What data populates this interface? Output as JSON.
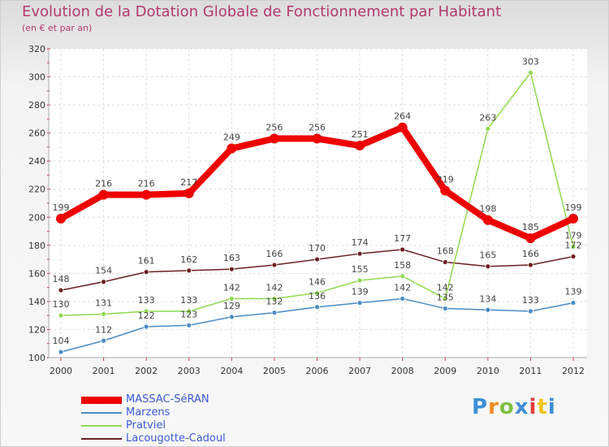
{
  "title": "Evolution de la Dotation Globale de Fonctionnement par Habitant",
  "subtitle": "(en € et par an)",
  "logo_text": "Proxiti",
  "chart_data": {
    "type": "line",
    "x": [
      "2000",
      "2001",
      "2002",
      "2003",
      "2004",
      "2005",
      "2006",
      "2007",
      "2008",
      "2009",
      "2010",
      "2011",
      "2012"
    ],
    "ylim": [
      100,
      320
    ],
    "yticks": [
      100,
      120,
      140,
      160,
      180,
      200,
      220,
      240,
      260,
      280,
      300,
      320
    ],
    "grid": true,
    "legend_position": "bottom-left",
    "series": [
      {
        "name": "MASSAC-SéRAN",
        "color": "#ee0000",
        "values": [
          199,
          216,
          216,
          217,
          249,
          256,
          256,
          251,
          264,
          219,
          198,
          185,
          199
        ]
      },
      {
        "name": "Marzens",
        "color": "#4a8bc5",
        "values": [
          104,
          112,
          122,
          123,
          129,
          132,
          136,
          139,
          142,
          135,
          134,
          133,
          139
        ]
      },
      {
        "name": "Pratviel",
        "color": "#8fd94f",
        "values": [
          130,
          131,
          133,
          133,
          142,
          142,
          146,
          155,
          158,
          142,
          263,
          303,
          179
        ]
      },
      {
        "name": "Lacougotte-Cadoul",
        "color": "#6b1f22",
        "values": [
          148,
          154,
          161,
          162,
          163,
          166,
          170,
          174,
          177,
          168,
          165,
          166,
          172
        ]
      }
    ]
  }
}
